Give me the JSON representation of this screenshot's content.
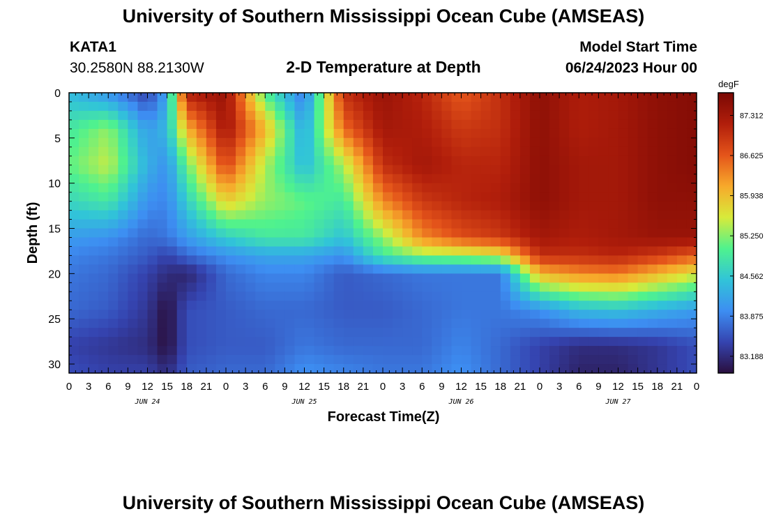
{
  "page": {
    "title": "University of Southern Mississippi Ocean Cube (AMSEAS)",
    "repeat_title": "University of Southern Mississippi Ocean Cube (AMSEAS)",
    "station_id": "KATA1",
    "station_coords": "30.2580N  88.2130W",
    "subtitle": "2-D Temperature at Depth",
    "start_label": "Model Start Time",
    "start_value": "06/24/2023 Hour 00"
  },
  "chart_data": {
    "type": "heatmap",
    "title": "2-D Temperature at Depth",
    "xlabel": "Forecast Time(Z)",
    "ylabel": "Depth (ft)",
    "x_ticks": [
      "0",
      "3",
      "6",
      "9",
      "12",
      "15",
      "18",
      "21",
      "0",
      "3",
      "6",
      "9",
      "12",
      "15",
      "18",
      "21",
      "0",
      "3",
      "6",
      "9",
      "12",
      "15",
      "18",
      "21",
      "0",
      "3",
      "6",
      "9",
      "12",
      "15",
      "18",
      "21",
      "0"
    ],
    "x_range_hours": [
      0,
      96
    ],
    "day_labels": [
      {
        "label": "JUN 24",
        "hour": 12
      },
      {
        "label": "JUN 25",
        "hour": 36
      },
      {
        "label": "JUN 26",
        "hour": 60
      },
      {
        "label": "JUN 27",
        "hour": 84
      }
    ],
    "y_ticks": [
      "0",
      "5",
      "10",
      "15",
      "20",
      "25",
      "30"
    ],
    "y_range_ft": [
      0,
      31
    ],
    "colorbar": {
      "unit": "degF",
      "range": [
        82.9,
        87.7
      ],
      "tick_labels": [
        "87.312",
        "86.625",
        "85.938",
        "85.250",
        "84.562",
        "83.875",
        "83.188"
      ],
      "colors": [
        "#2a0f3e",
        "#3544b0",
        "#3d8ef2",
        "#31c4d8",
        "#4ff28e",
        "#d8ea3a",
        "#f7a92b",
        "#e4541a",
        "#b11e0b",
        "#7a0804"
      ]
    },
    "depth_ft": [
      0,
      4,
      8,
      12,
      16,
      18,
      20,
      24,
      28,
      31
    ],
    "time_hours": [
      0,
      6,
      12,
      15,
      18,
      24,
      30,
      36,
      42,
      48,
      54,
      60,
      66,
      72,
      78,
      84,
      90,
      96
    ],
    "temperature_degF": [
      [
        84.4,
        84.0,
        83.4,
        84.2,
        87.2,
        87.4,
        85.0,
        83.8,
        87.0,
        87.4,
        87.1,
        86.6,
        87.0,
        87.5,
        87.2,
        87.3,
        87.5,
        87.6
      ],
      [
        84.9,
        85.3,
        84.1,
        84.4,
        86.0,
        87.3,
        86.0,
        84.2,
        86.5,
        87.3,
        87.2,
        86.9,
        87.0,
        87.5,
        87.2,
        87.3,
        87.5,
        87.6
      ],
      [
        85.1,
        85.5,
        84.3,
        84.0,
        85.1,
        86.8,
        85.4,
        84.4,
        85.4,
        87.0,
        87.3,
        87.1,
        87.1,
        87.5,
        87.3,
        87.3,
        87.5,
        87.6
      ],
      [
        84.7,
        84.9,
        84.0,
        83.9,
        84.6,
        85.8,
        85.3,
        85.1,
        84.9,
        86.3,
        86.9,
        87.1,
        87.2,
        87.5,
        87.3,
        87.3,
        87.5,
        87.5
      ],
      [
        84.1,
        84.0,
        83.7,
        83.8,
        84.1,
        84.6,
        84.9,
        84.9,
        84.5,
        85.3,
        86.3,
        86.7,
        86.9,
        87.3,
        87.2,
        87.3,
        87.4,
        87.4
      ],
      [
        83.9,
        83.8,
        83.6,
        83.4,
        83.7,
        84.0,
        84.2,
        84.2,
        84.0,
        84.9,
        85.3,
        85.4,
        85.6,
        87.0,
        87.0,
        87.1,
        86.9,
        86.6
      ],
      [
        83.8,
        83.7,
        83.4,
        83.2,
        83.1,
        83.7,
        83.9,
        83.9,
        83.6,
        83.7,
        83.8,
        83.8,
        83.8,
        86.0,
        86.3,
        86.4,
        86.0,
        85.6
      ],
      [
        83.7,
        83.6,
        83.3,
        82.9,
        83.5,
        83.6,
        83.7,
        83.7,
        83.6,
        83.6,
        83.7,
        83.8,
        83.8,
        84.0,
        84.4,
        84.5,
        84.3,
        84.1
      ],
      [
        83.4,
        83.3,
        83.2,
        82.9,
        83.5,
        83.6,
        83.6,
        83.8,
        83.7,
        83.7,
        83.7,
        83.9,
        83.7,
        83.4,
        83.2,
        83.2,
        83.3,
        83.5
      ],
      [
        83.5,
        83.4,
        83.4,
        83.2,
        83.6,
        83.7,
        83.7,
        84.0,
        83.9,
        83.8,
        83.8,
        84.0,
        83.7,
        83.4,
        83.1,
        83.1,
        83.3,
        83.5
      ]
    ]
  }
}
